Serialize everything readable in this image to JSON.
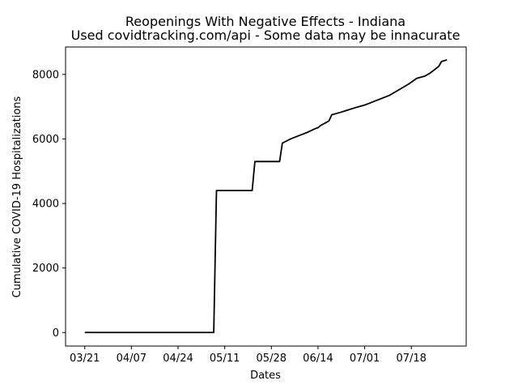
{
  "chart_data": {
    "type": "line",
    "title": "Reopenings With Negative Effects - Indiana",
    "subtitle": "Used covidtracking.com/api - Some data may be innacurate",
    "xlabel": "Dates",
    "ylabel": "Cumulative COVID-19 Hospitalizations",
    "x_ticks": [
      "03/21",
      "04/07",
      "04/24",
      "05/11",
      "05/28",
      "06/14",
      "07/01",
      "07/18"
    ],
    "y_ticks": [
      0,
      2000,
      4000,
      6000,
      8000
    ],
    "ylim": [
      -420,
      8850
    ],
    "xlim": [
      "2020-03-14",
      "2020-08-07"
    ],
    "grid": false,
    "line_color": "#000000",
    "series": [
      {
        "x": [
          "2020-03-21",
          "2020-05-07",
          "2020-05-08",
          "2020-05-21",
          "2020-05-22",
          "2020-05-31",
          "2020-06-01",
          "2020-06-04",
          "2020-06-07",
          "2020-06-10",
          "2020-06-13",
          "2020-06-14",
          "2020-06-15",
          "2020-06-18",
          "2020-06-19",
          "2020-06-22",
          "2020-06-25",
          "2020-06-28",
          "2020-07-01",
          "2020-07-04",
          "2020-07-07",
          "2020-07-10",
          "2020-07-12",
          "2020-07-14",
          "2020-07-17",
          "2020-07-20",
          "2020-07-23",
          "2020-07-25",
          "2020-07-28",
          "2020-07-29",
          "2020-07-31"
        ],
        "y": [
          0,
          0,
          4400,
          4400,
          5300,
          5300,
          5870,
          6000,
          6100,
          6200,
          6320,
          6350,
          6420,
          6560,
          6750,
          6820,
          6900,
          6980,
          7050,
          7150,
          7250,
          7350,
          7450,
          7550,
          7700,
          7880,
          7950,
          8050,
          8250,
          8400,
          8450
        ]
      }
    ]
  }
}
